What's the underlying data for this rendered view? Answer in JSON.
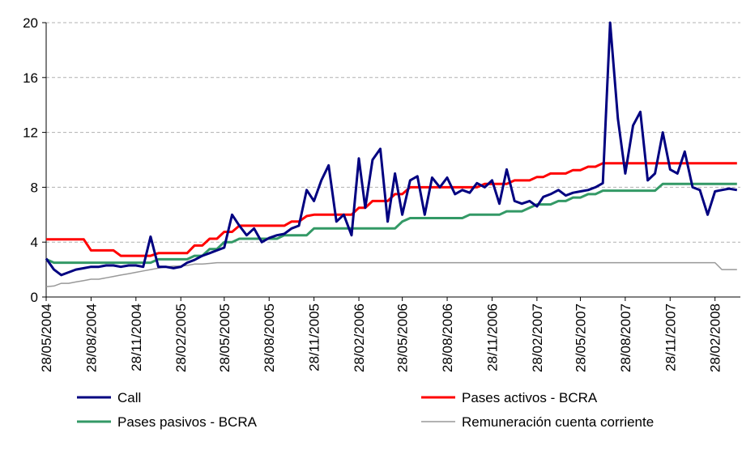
{
  "chart_data": {
    "type": "line",
    "x": [
      "28/05/2004",
      "13/06/2004",
      "28/06/2004",
      "13/07/2004",
      "28/07/2004",
      "13/08/2004",
      "28/08/2004",
      "13/09/2004",
      "28/09/2004",
      "13/10/2004",
      "28/10/2004",
      "13/11/2004",
      "28/11/2004",
      "13/12/2004",
      "28/12/2004",
      "13/01/2005",
      "28/01/2005",
      "13/02/2005",
      "28/02/2005",
      "13/03/2005",
      "28/03/2005",
      "13/04/2005",
      "28/04/2005",
      "13/05/2005",
      "28/05/2005",
      "13/06/2005",
      "28/06/2005",
      "13/07/2005",
      "28/07/2005",
      "13/08/2005",
      "28/08/2005",
      "13/09/2005",
      "28/09/2005",
      "13/10/2005",
      "28/10/2005",
      "13/11/2005",
      "28/11/2005",
      "13/12/2005",
      "28/12/2005",
      "13/01/2006",
      "28/01/2006",
      "13/02/2006",
      "28/02/2006",
      "13/03/2006",
      "28/03/2006",
      "13/04/2006",
      "28/04/2006",
      "13/05/2006",
      "28/05/2006",
      "13/06/2006",
      "28/06/2006",
      "13/07/2006",
      "28/07/2006",
      "13/08/2006",
      "28/08/2006",
      "13/09/2006",
      "28/09/2006",
      "13/10/2006",
      "28/10/2006",
      "13/11/2006",
      "28/11/2006",
      "13/12/2006",
      "28/12/2006",
      "13/01/2007",
      "28/01/2007",
      "13/02/2007",
      "28/02/2007",
      "13/03/2007",
      "28/03/2007",
      "13/04/2007",
      "28/04/2007",
      "13/05/2007",
      "28/05/2007",
      "13/06/2007",
      "28/06/2007",
      "13/07/2007",
      "28/07/2007",
      "13/08/2007",
      "28/08/2007",
      "13/09/2007",
      "28/09/2007",
      "13/10/2007",
      "28/10/2007",
      "13/11/2007",
      "28/11/2007",
      "13/12/2007",
      "28/12/2007",
      "13/01/2008",
      "28/01/2008",
      "13/02/2008",
      "28/02/2008",
      "13/03/2008",
      "28/03/2008",
      "13/04/2008"
    ],
    "series": [
      {
        "name": "Call",
        "color": "#000080",
        "width": 3,
        "values": [
          2.8,
          2.0,
          1.6,
          1.8,
          2.0,
          2.1,
          2.2,
          2.2,
          2.3,
          2.3,
          2.2,
          2.3,
          2.3,
          2.2,
          4.4,
          2.2,
          2.2,
          2.1,
          2.2,
          2.5,
          2.7,
          3.0,
          3.2,
          3.4,
          3.6,
          6.0,
          5.2,
          4.5,
          5.0,
          4.0,
          4.3,
          4.5,
          4.6,
          5.0,
          5.2,
          7.8,
          7.0,
          8.5,
          9.6,
          5.5,
          6.0,
          4.5,
          10.1,
          6.5,
          10.0,
          10.8,
          5.5,
          9.0,
          6.0,
          8.5,
          8.8,
          6.0,
          8.7,
          8.0,
          8.7,
          7.5,
          7.8,
          7.6,
          8.3,
          8.0,
          8.5,
          6.8,
          9.3,
          7.0,
          6.8,
          7.0,
          6.6,
          7.3,
          7.5,
          7.8,
          7.4,
          7.6,
          7.7,
          7.8,
          8.0,
          8.3,
          20.0,
          13.0,
          9.0,
          12.5,
          13.5,
          8.5,
          9.0,
          12.0,
          9.3,
          9.0,
          10.6,
          8.0,
          7.8,
          6.0,
          7.7,
          7.8,
          7.9,
          7.8
        ]
      },
      {
        "name": "Pases activos - BCRA",
        "color": "#ff0000",
        "width": 3,
        "values": [
          4.2,
          4.2,
          4.2,
          4.2,
          4.2,
          4.2,
          3.4,
          3.4,
          3.4,
          3.4,
          3.0,
          3.0,
          3.0,
          3.0,
          3.0,
          3.2,
          3.2,
          3.2,
          3.2,
          3.2,
          3.75,
          3.75,
          4.25,
          4.25,
          4.75,
          4.75,
          5.2,
          5.2,
          5.2,
          5.2,
          5.2,
          5.2,
          5.2,
          5.5,
          5.5,
          5.9,
          6.0,
          6.0,
          6.0,
          6.0,
          6.0,
          6.0,
          6.5,
          6.5,
          7.0,
          7.0,
          7.0,
          7.5,
          7.5,
          8.0,
          8.0,
          8.0,
          8.0,
          8.0,
          8.0,
          8.0,
          8.0,
          8.0,
          8.0,
          8.25,
          8.25,
          8.25,
          8.25,
          8.5,
          8.5,
          8.5,
          8.75,
          8.75,
          9.0,
          9.0,
          9.0,
          9.25,
          9.25,
          9.5,
          9.5,
          9.75,
          9.75,
          9.75,
          9.75,
          9.75,
          9.75,
          9.75,
          9.75,
          9.75,
          9.75,
          9.75,
          9.75,
          9.75,
          9.75,
          9.75,
          9.75,
          9.75,
          9.75,
          9.75
        ]
      },
      {
        "name": "Pases pasivos - BCRA",
        "color": "#339966",
        "width": 3,
        "values": [
          2.75,
          2.5,
          2.5,
          2.5,
          2.5,
          2.5,
          2.5,
          2.5,
          2.5,
          2.5,
          2.5,
          2.5,
          2.5,
          2.5,
          2.5,
          2.75,
          2.75,
          2.75,
          2.75,
          2.75,
          3.0,
          3.0,
          3.5,
          3.5,
          4.0,
          4.0,
          4.25,
          4.25,
          4.25,
          4.25,
          4.25,
          4.25,
          4.5,
          4.5,
          4.5,
          4.5,
          5.0,
          5.0,
          5.0,
          5.0,
          5.0,
          5.0,
          5.0,
          5.0,
          5.0,
          5.0,
          5.0,
          5.0,
          5.5,
          5.75,
          5.75,
          5.75,
          5.75,
          5.75,
          5.75,
          5.75,
          5.75,
          6.0,
          6.0,
          6.0,
          6.0,
          6.0,
          6.25,
          6.25,
          6.25,
          6.5,
          6.75,
          6.75,
          6.75,
          7.0,
          7.0,
          7.25,
          7.25,
          7.5,
          7.5,
          7.75,
          7.75,
          7.75,
          7.75,
          7.75,
          7.75,
          7.75,
          7.75,
          8.25,
          8.25,
          8.25,
          8.25,
          8.25,
          8.25,
          8.25,
          8.25,
          8.25,
          8.25,
          8.25
        ]
      },
      {
        "name": "Remuneración cuenta corriente",
        "color": "#999999",
        "width": 1.5,
        "values": [
          0.75,
          0.8,
          1.0,
          1.0,
          1.1,
          1.2,
          1.3,
          1.3,
          1.4,
          1.5,
          1.6,
          1.7,
          1.8,
          1.9,
          2.0,
          2.1,
          2.2,
          2.25,
          2.25,
          2.3,
          2.4,
          2.4,
          2.45,
          2.5,
          2.5,
          2.5,
          2.5,
          2.5,
          2.5,
          2.5,
          2.5,
          2.5,
          2.5,
          2.5,
          2.5,
          2.5,
          2.5,
          2.5,
          2.5,
          2.5,
          2.5,
          2.5,
          2.5,
          2.5,
          2.5,
          2.5,
          2.5,
          2.5,
          2.5,
          2.5,
          2.5,
          2.5,
          2.5,
          2.5,
          2.5,
          2.5,
          2.5,
          2.5,
          2.5,
          2.5,
          2.5,
          2.5,
          2.5,
          2.5,
          2.5,
          2.5,
          2.5,
          2.5,
          2.5,
          2.5,
          2.5,
          2.5,
          2.5,
          2.5,
          2.5,
          2.5,
          2.5,
          2.5,
          2.5,
          2.5,
          2.5,
          2.5,
          2.5,
          2.5,
          2.5,
          2.5,
          2.5,
          2.5,
          2.5,
          2.5,
          2.5,
          2.0,
          2.0,
          2.0
        ]
      }
    ],
    "xlim": [
      "28/05/2004",
      "20/04/2008"
    ],
    "xticks": [
      "28/05/2004",
      "28/08/2004",
      "28/11/2004",
      "28/02/2005",
      "28/05/2005",
      "28/08/2005",
      "28/11/2005",
      "28/02/2006",
      "28/05/2006",
      "28/08/2006",
      "28/11/2006",
      "28/02/2007",
      "28/05/2007",
      "28/08/2007",
      "28/11/2007",
      "28/02/2008"
    ],
    "ylim": [
      0,
      20
    ],
    "yticks": [
      0,
      4,
      8,
      12,
      16,
      20
    ],
    "grid": true,
    "legend": "bottom"
  }
}
